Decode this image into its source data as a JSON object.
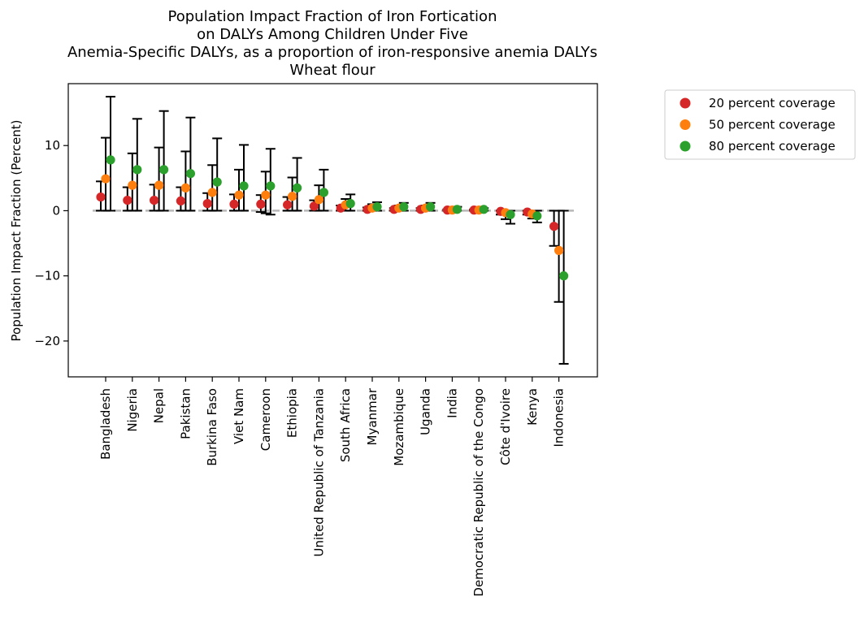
{
  "chart_data": {
    "type": "scatter",
    "title_lines": [
      "Population Impact Fraction of Iron Fortication",
      "on DALYs Among Children Under Five",
      "Anemia-Specific DALYs, as a proportion of iron-responsive anemia DALYs",
      "Wheat flour"
    ],
    "xlabel": "",
    "ylabel": "Population Impact Fraction (Percent)",
    "ylim": [
      -25.5,
      19.5
    ],
    "yticks": [
      -20,
      -10,
      0,
      10
    ],
    "ytick_labels": [
      "−20",
      "−10",
      "0",
      "10"
    ],
    "reference_line": 0,
    "categories": [
      "Bangladesh",
      "Nigeria",
      "Nepal",
      "Pakistan",
      "Burkina Faso",
      "Viet Nam",
      "Cameroon",
      "Ethiopia",
      "United Republic of Tanzania",
      "South Africa",
      "Myanmar",
      "Mozambique",
      "Uganda",
      "India",
      "Democratic Republic of the Congo",
      "Côte d'Ivoire",
      "Kenya",
      "Indonesia"
    ],
    "series": [
      {
        "name": "20 percent coverage",
        "color": "#d62728",
        "values": [
          2.1,
          1.6,
          1.6,
          1.5,
          1.1,
          1.0,
          1.0,
          0.9,
          0.7,
          0.4,
          0.2,
          0.2,
          0.2,
          0.1,
          0.1,
          -0.1,
          -0.2,
          -2.4
        ],
        "lower": [
          0.0,
          0.0,
          0.0,
          0.0,
          0.0,
          0.0,
          -0.2,
          0.0,
          0.0,
          0.0,
          0.0,
          0.0,
          0.0,
          0.0,
          0.0,
          -0.6,
          -0.6,
          -5.4
        ],
        "upper": [
          4.5,
          3.6,
          4.0,
          3.6,
          2.7,
          2.5,
          2.4,
          2.1,
          1.6,
          0.8,
          0.5,
          0.4,
          0.4,
          0.2,
          0.2,
          0.0,
          0.0,
          0.0
        ]
      },
      {
        "name": "50 percent coverage",
        "color": "#ff7f0e",
        "values": [
          4.9,
          3.9,
          3.9,
          3.5,
          2.8,
          2.4,
          2.4,
          2.2,
          1.7,
          0.9,
          0.4,
          0.4,
          0.4,
          0.1,
          0.1,
          -0.3,
          -0.5,
          -6.1
        ],
        "lower": [
          0.0,
          0.0,
          0.0,
          0.0,
          0.0,
          0.0,
          -0.4,
          0.0,
          0.0,
          0.0,
          0.0,
          0.0,
          0.0,
          0.0,
          0.0,
          -1.3,
          -1.2,
          -14.0
        ],
        "upper": [
          11.2,
          8.8,
          9.7,
          9.1,
          7.0,
          6.3,
          6.0,
          5.1,
          3.9,
          1.8,
          1.0,
          0.8,
          0.8,
          0.4,
          0.3,
          0.0,
          0.0,
          0.0
        ]
      },
      {
        "name": "80 percent coverage",
        "color": "#2ca02c",
        "values": [
          7.8,
          6.3,
          6.3,
          5.7,
          4.4,
          3.8,
          3.8,
          3.5,
          2.8,
          1.1,
          0.6,
          0.6,
          0.6,
          0.2,
          0.2,
          -0.6,
          -0.8,
          -10.0
        ],
        "lower": [
          0.0,
          0.0,
          0.0,
          0.0,
          0.0,
          0.0,
          -0.6,
          0.0,
          0.0,
          0.0,
          0.0,
          0.0,
          0.0,
          0.0,
          0.0,
          -2.0,
          -1.8,
          -23.5
        ],
        "upper": [
          17.5,
          14.1,
          15.3,
          14.3,
          11.1,
          10.1,
          9.5,
          8.1,
          6.3,
          2.5,
          1.3,
          1.2,
          1.2,
          0.6,
          0.4,
          0.0,
          0.0,
          0.0
        ]
      }
    ],
    "legend_position": "outside-right-top",
    "grid": false
  }
}
